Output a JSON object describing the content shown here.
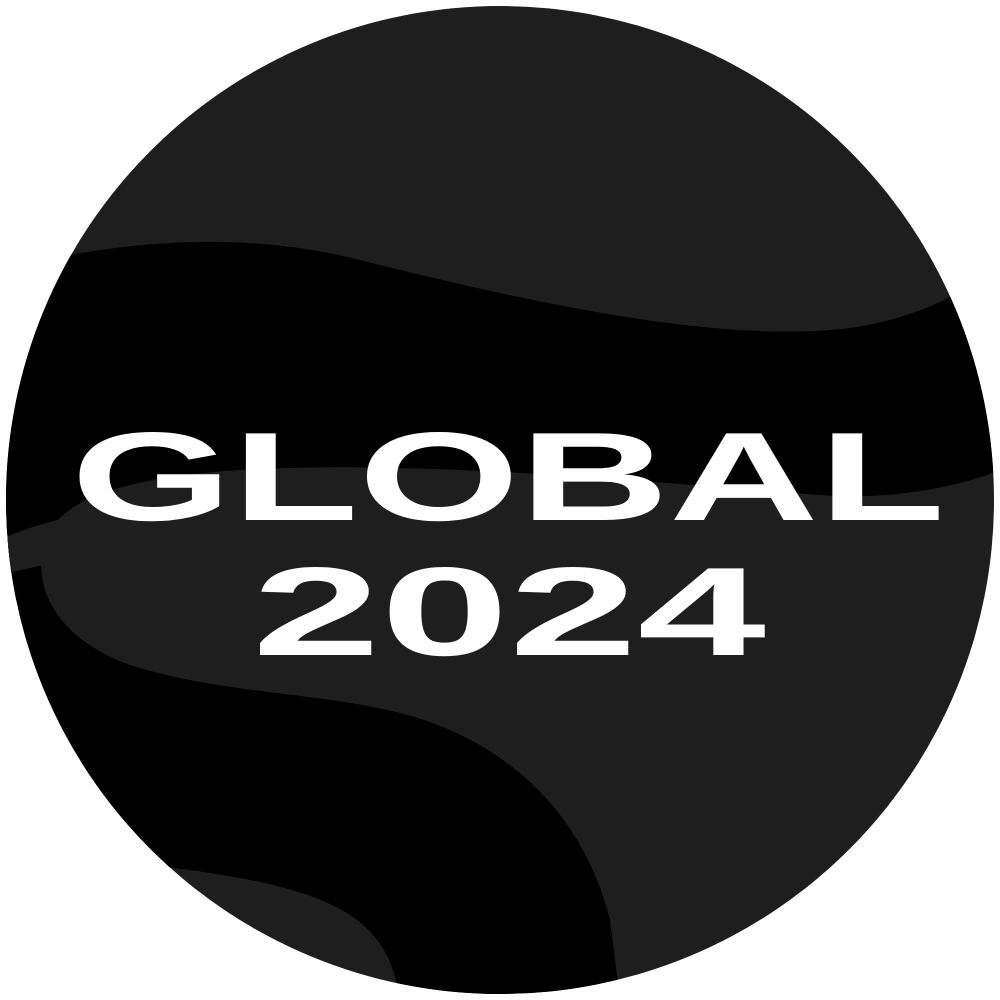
{
  "badge": {
    "line1": "GLOBAL",
    "line2": "2024"
  },
  "colors": {
    "background": "#ffffff",
    "circle_dark": "#1e1e1e",
    "swoosh": "#000000",
    "text": "#ffffff"
  }
}
